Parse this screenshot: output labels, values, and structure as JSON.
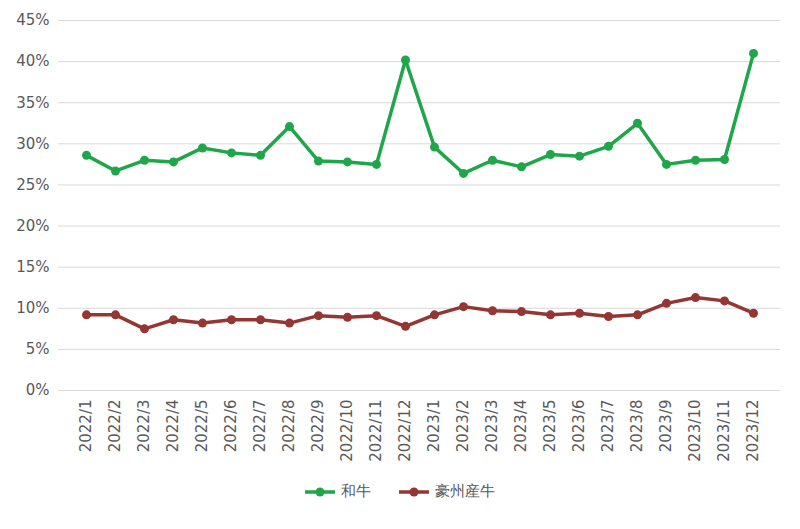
{
  "chart_data": {
    "type": "line",
    "categories": [
      "2022/1",
      "2022/2",
      "2022/3",
      "2022/4",
      "2022/5",
      "2022/6",
      "2022/7",
      "2022/8",
      "2022/9",
      "2022/10",
      "2022/11",
      "2022/12",
      "2023/1",
      "2023/2",
      "2023/3",
      "2023/4",
      "2023/5",
      "2023/6",
      "2023/7",
      "2023/8",
      "2023/9",
      "2023/10",
      "2023/11",
      "2023/12"
    ],
    "series": [
      {
        "name": "和牛",
        "color": "#1fa64a",
        "marker": "circle",
        "values": [
          28.6,
          26.7,
          28.0,
          27.8,
          29.5,
          28.9,
          28.6,
          32.1,
          27.9,
          27.8,
          27.5,
          40.2,
          29.6,
          26.4,
          28.0,
          27.2,
          28.7,
          28.5,
          29.7,
          32.5,
          27.5,
          28.0,
          28.1,
          41.0
        ]
      },
      {
        "name": "豪州産牛",
        "color": "#943634",
        "marker": "circle",
        "values": [
          9.2,
          9.2,
          7.5,
          8.6,
          8.2,
          8.6,
          8.6,
          8.2,
          9.1,
          8.9,
          9.1,
          7.8,
          9.2,
          10.2,
          9.7,
          9.6,
          9.2,
          9.4,
          9.0,
          9.2,
          10.6,
          11.3,
          10.9,
          9.4
        ]
      }
    ],
    "ylim": [
      0,
      45
    ],
    "yticks": [
      {
        "value": 0,
        "label": "0%"
      },
      {
        "value": 5,
        "label": "5%"
      },
      {
        "value": 10,
        "label": "10%"
      },
      {
        "value": 15,
        "label": "15%"
      },
      {
        "value": 20,
        "label": "20%"
      },
      {
        "value": 25,
        "label": "25%"
      },
      {
        "value": 30,
        "label": "30%"
      },
      {
        "value": 35,
        "label": "35%"
      },
      {
        "value": 40,
        "label": "40%"
      },
      {
        "value": 45,
        "label": "45%"
      }
    ],
    "grid": true,
    "legend": "bottom"
  }
}
